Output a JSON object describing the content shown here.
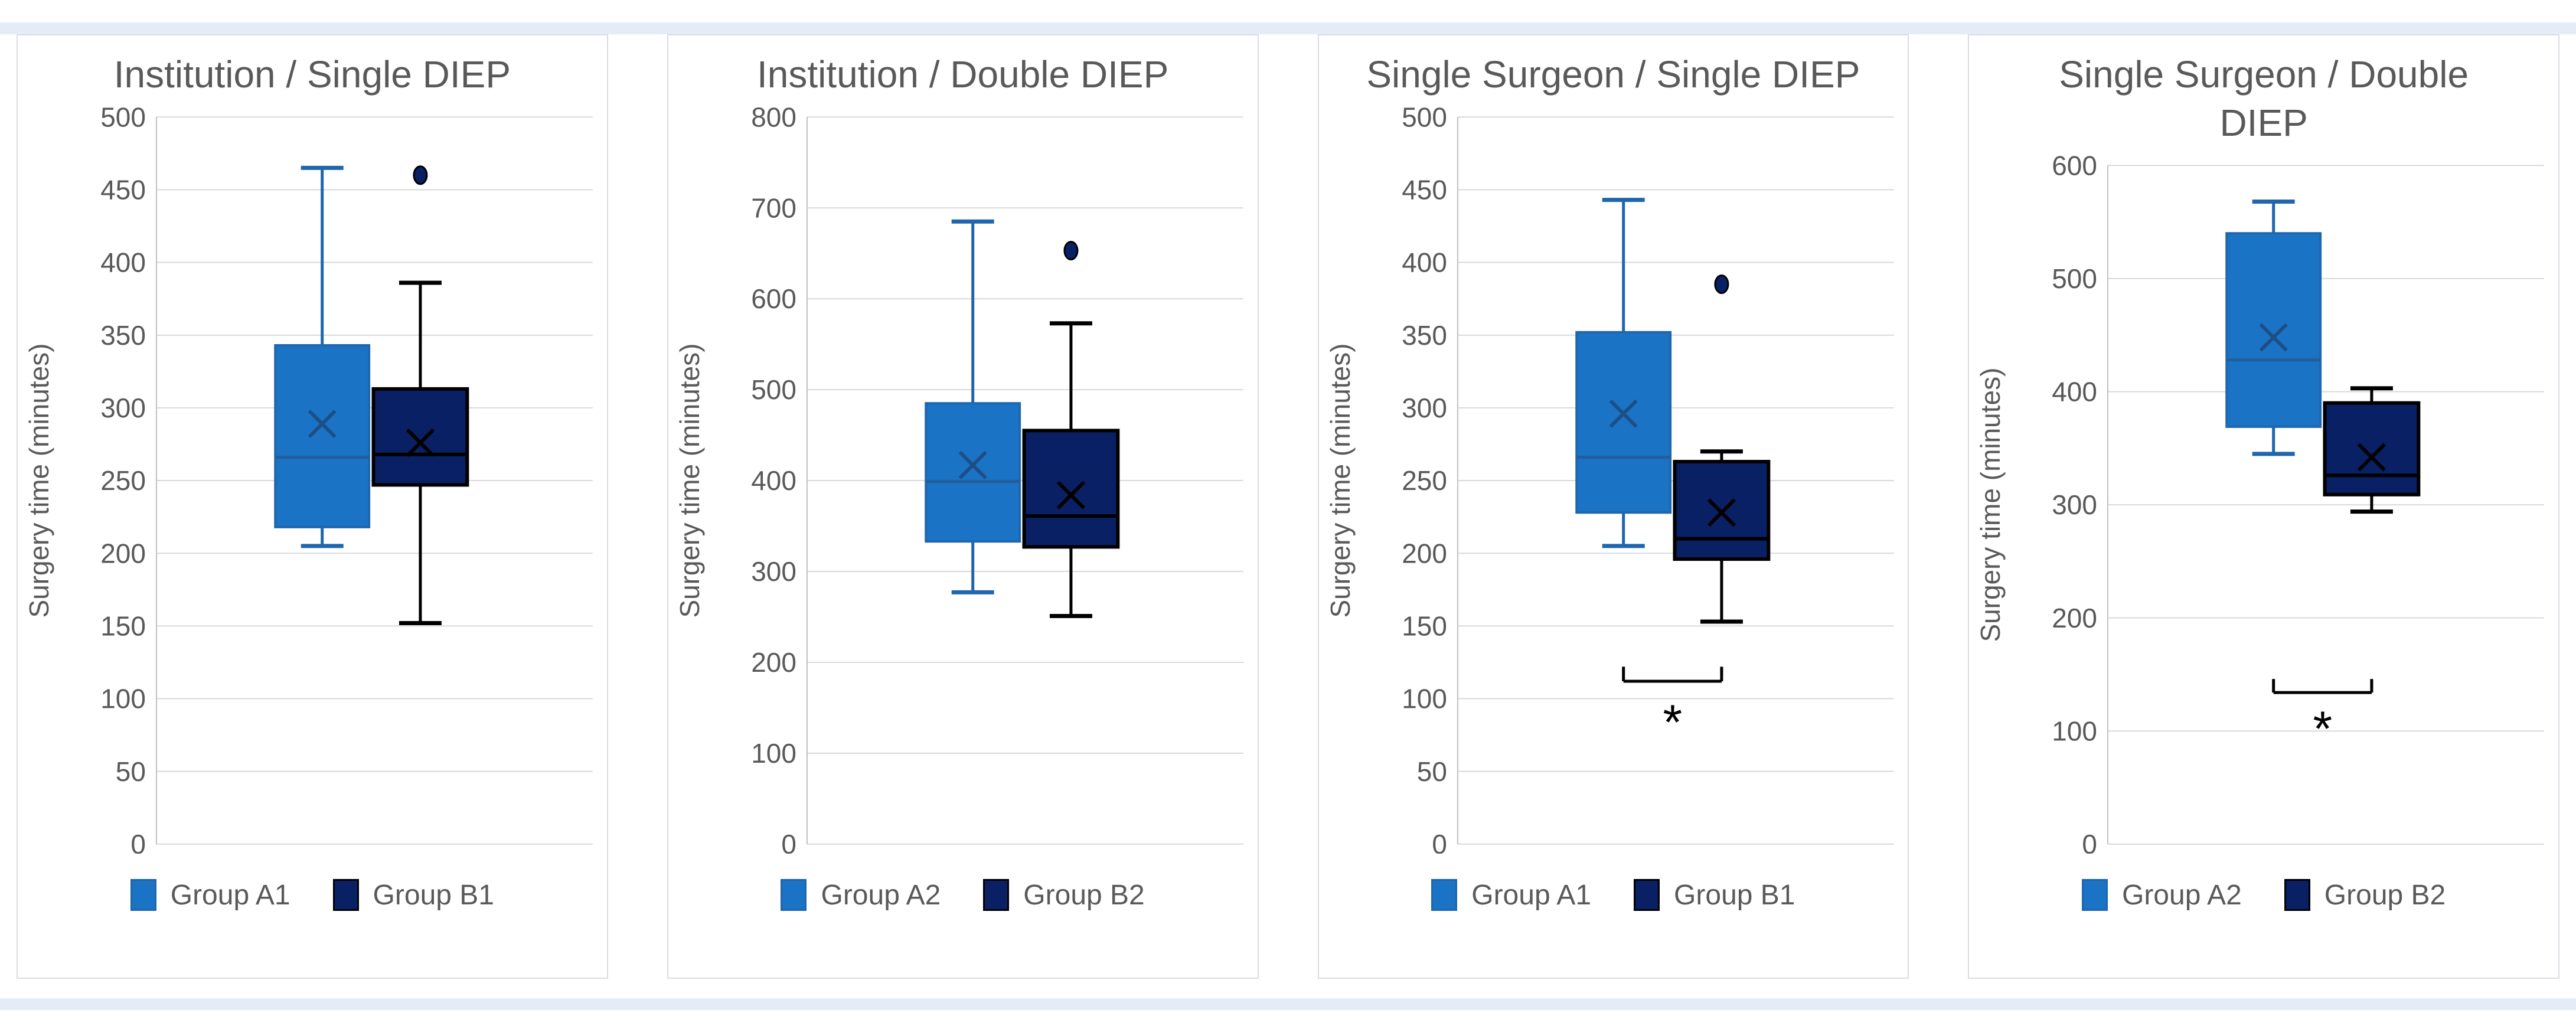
{
  "page": {
    "top_strip_color": "#e4edf7",
    "bottom_strip_color": "#e4edf7",
    "background": "#ffffff",
    "card_border": "#d9dde3"
  },
  "colors": {
    "group_a_fill": "#1a73c4",
    "group_a_stroke": "#1f66ad",
    "group_a_median": "#245d9a",
    "group_a_mean": "#1d4f86",
    "group_b_fill": "#0a2064",
    "group_b_stroke": "#000000",
    "grid": "#d9d9d9",
    "axis": "#c0c0c0",
    "text_gray": "#595959",
    "annotation": "#000000"
  },
  "chart_data": [
    {
      "type": "box",
      "title": "Institution / Single DIEP",
      "ylabel": "Surgery time (minutes)",
      "ylim": [
        0,
        500
      ],
      "ytick_step": 50,
      "grid": true,
      "legend_position": "bottom",
      "series": [
        {
          "name": "Group A1",
          "color_key": "A",
          "whisker_low": 205,
          "q1": 218,
          "median": 266,
          "q3": 343,
          "whisker_high": 465,
          "mean": 289,
          "outliers": []
        },
        {
          "name": "Group B1",
          "color_key": "B",
          "whisker_low": 152,
          "q1": 247,
          "median": 268,
          "q3": 313,
          "whisker_high": 386,
          "mean": 276,
          "outliers": [
            460
          ]
        }
      ],
      "significance": null,
      "legend": [
        "Group A1",
        "Group B1"
      ]
    },
    {
      "type": "box",
      "title": "Institution / Double DIEP",
      "ylabel": "Surgery time (minutes)",
      "ylim": [
        0,
        800
      ],
      "ytick_step": 100,
      "grid": true,
      "legend_position": "bottom",
      "series": [
        {
          "name": "Group A2",
          "color_key": "A",
          "whisker_low": 277,
          "q1": 333,
          "median": 399,
          "q3": 485,
          "whisker_high": 685,
          "mean": 417,
          "outliers": []
        },
        {
          "name": "Group B2",
          "color_key": "B",
          "whisker_low": 251,
          "q1": 327,
          "median": 361,
          "q3": 455,
          "whisker_high": 573,
          "mean": 384,
          "outliers": [
            653
          ]
        }
      ],
      "significance": null,
      "legend": [
        "Group A2",
        "Group B2"
      ]
    },
    {
      "type": "box",
      "title": "Single Surgeon / Single DIEP",
      "ylabel": "Surgery time (minutes)",
      "ylim": [
        0,
        500
      ],
      "ytick_step": 50,
      "grid": true,
      "legend_position": "bottom",
      "series": [
        {
          "name": "Group A1",
          "color_key": "A",
          "whisker_low": 205,
          "q1": 228,
          "median": 266,
          "q3": 352,
          "whisker_high": 443,
          "mean": 296,
          "outliers": []
        },
        {
          "name": "Group B1",
          "color_key": "B",
          "whisker_low": 153,
          "q1": 196,
          "median": 210,
          "q3": 263,
          "whisker_high": 270,
          "mean": 228,
          "outliers": [
            385
          ]
        }
      ],
      "significance": {
        "bracket_y": 112,
        "tick_top": 122,
        "star_y": 90,
        "label": "*"
      },
      "legend": [
        "Group A1",
        "Group B1"
      ]
    },
    {
      "type": "box",
      "title": "Single Surgeon / Double DIEP",
      "ylabel": "Surgery time (minutes)",
      "ylim": [
        0,
        600
      ],
      "ytick_step": 100,
      "grid": true,
      "legend_position": "bottom",
      "series": [
        {
          "name": "Group A2",
          "color_key": "A",
          "whisker_low": 345,
          "q1": 369,
          "median": 428,
          "q3": 540,
          "whisker_high": 568,
          "mean": 448,
          "outliers": []
        },
        {
          "name": "Group B2",
          "color_key": "B",
          "whisker_low": 294,
          "q1": 309,
          "median": 326,
          "q3": 390,
          "whisker_high": 403,
          "mean": 342,
          "outliers": []
        }
      ],
      "significance": {
        "bracket_y": 134,
        "tick_top": 146,
        "star_y": 110,
        "label": "*"
      },
      "legend": [
        "Group A2",
        "Group B2"
      ]
    }
  ]
}
